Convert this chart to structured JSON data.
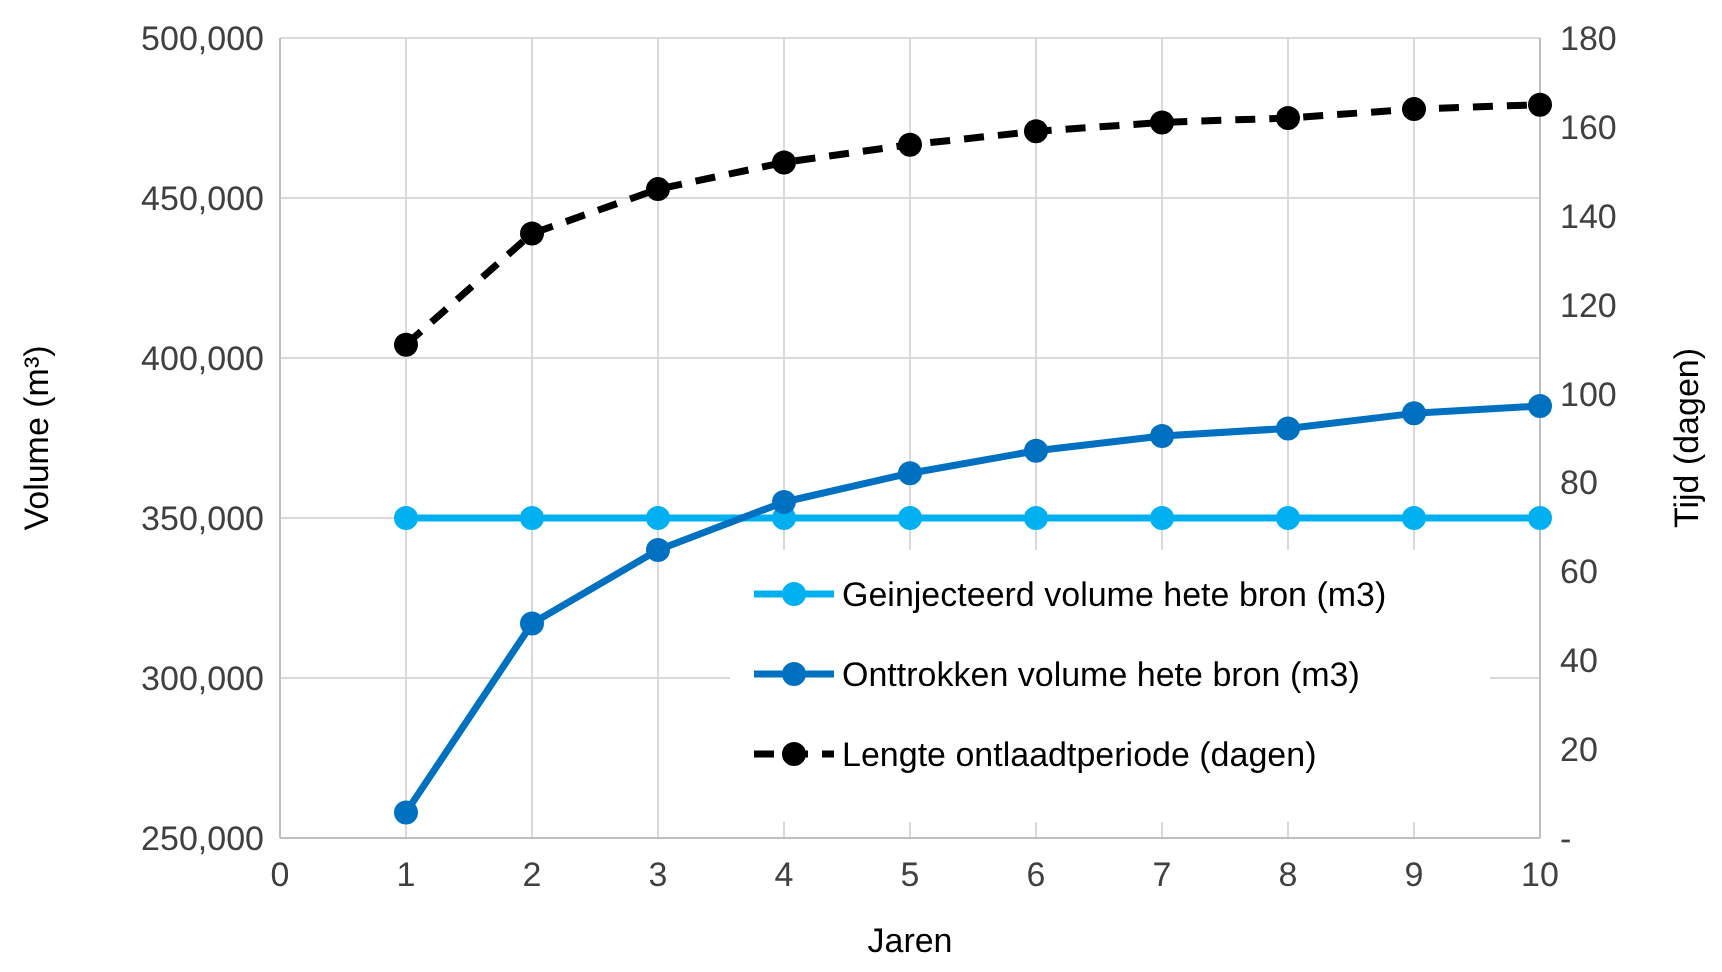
{
  "chart_data": {
    "type": "line",
    "xlabel": "Jaren",
    "ylabel": "Volume (m³)",
    "y2label": "Tijd (dagen)",
    "x": [
      1,
      2,
      3,
      4,
      5,
      6,
      7,
      8,
      9,
      10
    ],
    "xlim": [
      0,
      10
    ],
    "xticks": [
      0,
      1,
      2,
      3,
      4,
      5,
      6,
      7,
      8,
      9,
      10
    ],
    "ylim": [
      250000,
      500000
    ],
    "yticks": [
      {
        "value": 250000,
        "label": "250,000"
      },
      {
        "value": 300000,
        "label": "300,000"
      },
      {
        "value": 350000,
        "label": "350,000"
      },
      {
        "value": 400000,
        "label": "400,000"
      },
      {
        "value": 450000,
        "label": "450,000"
      },
      {
        "value": 500000,
        "label": "500,000"
      }
    ],
    "y2lim": [
      0,
      180
    ],
    "y2ticks": [
      {
        "value": 0,
        "label": "-"
      },
      20,
      40,
      60,
      80,
      100,
      120,
      140,
      160,
      180
    ],
    "grid": true,
    "legend": "bottom right",
    "marker": "circle",
    "series": [
      {
        "name": "Geinjecteerd volume hete bron (m3)",
        "color": "#00b0f0",
        "values": [
          350000,
          350000,
          350000,
          350000,
          350000,
          350000,
          350000,
          350000,
          350000,
          350000
        ]
      },
      {
        "name": "Onttrokken volume hete bron (m3)",
        "color": "#0070c0",
        "values": [
          258000,
          317000,
          340000,
          355000,
          364000,
          371000,
          375600,
          378000,
          382700,
          385000
        ]
      },
      {
        "name": "Lengte ontlaadtperiode (dagen)",
        "color": "#000000",
        "axis": "y2",
        "line_style": "dashed",
        "values": [
          111,
          136,
          146,
          152,
          156,
          159,
          161,
          162,
          164,
          165
        ]
      }
    ]
  }
}
